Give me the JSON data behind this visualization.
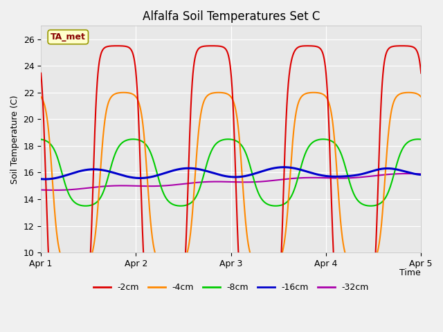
{
  "title": "Alfalfa Soil Temperatures Set C",
  "xlabel": "Time",
  "ylabel": "Soil Temperature (C)",
  "ylim": [
    10,
    27
  ],
  "yticks": [
    10,
    12,
    14,
    16,
    18,
    20,
    22,
    24,
    26
  ],
  "xtick_positions": [
    0,
    1,
    2,
    3,
    4
  ],
  "xtick_labels": [
    "Apr 1",
    "Apr 2",
    "Apr 3",
    "Apr 4",
    "Apr 5"
  ],
  "fig_bg_color": "#f0f0f0",
  "plot_bg_color": "#e8e8e8",
  "legend_items": [
    "-2cm",
    "-4cm",
    "-8cm",
    "-16cm",
    "-32cm"
  ],
  "line_colors": [
    "#dd0000",
    "#ff8800",
    "#00cc00",
    "#0000cc",
    "#aa00aa"
  ],
  "annotation_text": "TA_met",
  "annotation_bg": "#ffffcc",
  "annotation_border": "#999900",
  "annotation_text_color": "#880000",
  "x_start": 0,
  "x_end": 4
}
